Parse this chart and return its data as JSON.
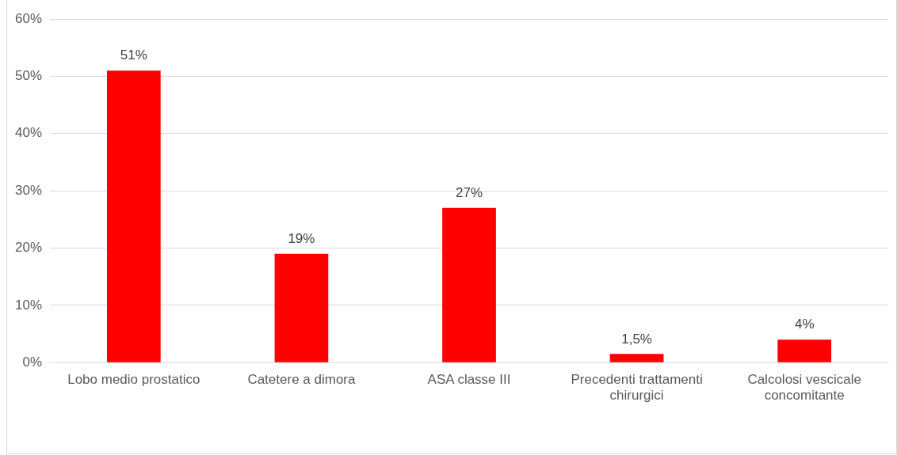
{
  "chart_data": {
    "type": "bar",
    "categories": [
      "Lobo medio prostatico",
      "Catetere a dimora",
      "ASA classe III",
      "Precedenti trattamenti chirurgici",
      "Calcolosi vescicale concomitante"
    ],
    "values": [
      51,
      19,
      27,
      1.5,
      4
    ],
    "color": "#ff0000",
    "value_labels": [
      "51%",
      "19%",
      "27%",
      "1,5%",
      "4%"
    ],
    "ylim": [
      0,
      60
    ],
    "yticks": [
      {
        "value": 0,
        "label": "0%"
      },
      {
        "value": 10,
        "label": "10%"
      },
      {
        "value": 20,
        "label": "20%"
      },
      {
        "value": 30,
        "label": "30%"
      },
      {
        "value": 40,
        "label": "40%"
      },
      {
        "value": 50,
        "label": "50%"
      },
      {
        "value": 60,
        "label": "60%"
      }
    ],
    "grid": "y",
    "legend": false
  }
}
